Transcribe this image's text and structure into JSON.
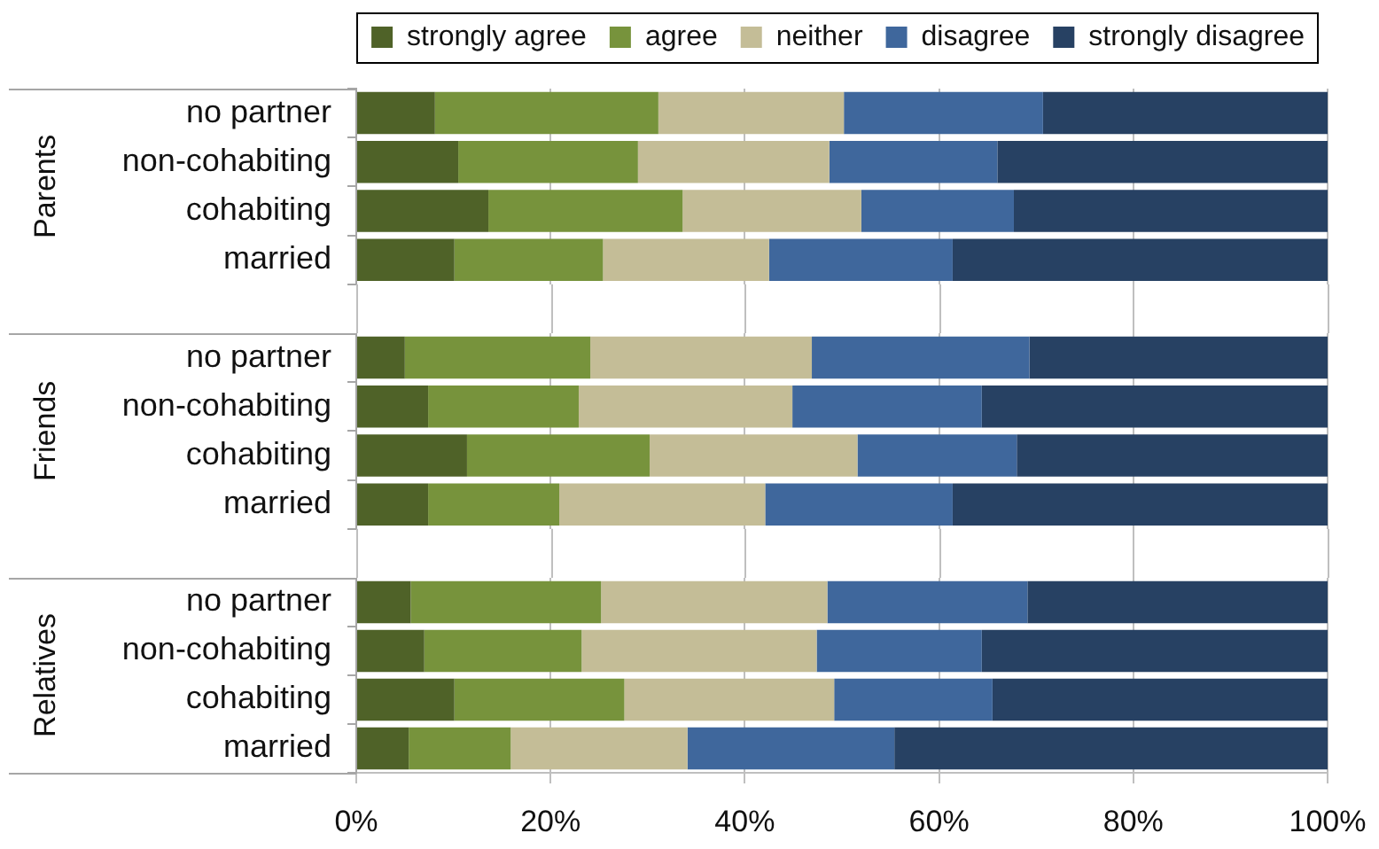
{
  "chart_data": [
    {
      "type": "bar",
      "orientation": "horizontal",
      "stacked": true,
      "ylabel": "Parents",
      "categories": [
        "no partner",
        "non-cohabiting",
        "cohabiting",
        "married"
      ],
      "series": [
        {
          "name": "strongly agree",
          "color": "#4f6228",
          "values": [
            8.1,
            10.5,
            13.6,
            10.1
          ]
        },
        {
          "name": "agree",
          "color": "#77933c",
          "values": [
            23.0,
            18.5,
            20.0,
            15.3
          ]
        },
        {
          "name": "neither",
          "color": "#c4bd97",
          "values": [
            19.1,
            19.7,
            18.4,
            17.1
          ]
        },
        {
          "name": "disagree",
          "color": "#3f679c",
          "values": [
            20.5,
            17.3,
            15.7,
            18.9
          ]
        },
        {
          "name": "strongly disagree",
          "color": "#274163",
          "values": [
            29.3,
            34.0,
            32.3,
            38.6
          ]
        }
      ],
      "xlim": [
        0,
        100
      ],
      "xticks": [
        {
          "value": 0,
          "label": null
        },
        {
          "value": 20,
          "label": null
        },
        {
          "value": 40,
          "label": null
        },
        {
          "value": 60,
          "label": null
        },
        {
          "value": 80,
          "label": null
        },
        {
          "value": 100,
          "label": null
        }
      ],
      "grid": "x",
      "legend": "top right",
      "tick_labels": "y"
    },
    {
      "type": "bar",
      "orientation": "horizontal",
      "stacked": true,
      "ylabel": "Friends",
      "categories": [
        "no partner",
        "non-cohabiting",
        "cohabiting",
        "married"
      ],
      "series": [
        {
          "color": "#4f6228",
          "values": [
            5.0,
            7.4,
            11.4,
            7.4
          ]
        },
        {
          "color": "#77933c",
          "values": [
            19.1,
            15.5,
            18.8,
            13.5
          ]
        },
        {
          "color": "#c4bd97",
          "values": [
            22.8,
            22.0,
            21.4,
            21.2
          ]
        },
        {
          "color": "#3f679c",
          "values": [
            22.4,
            19.5,
            16.4,
            19.3
          ]
        },
        {
          "color": "#274163",
          "values": [
            30.7,
            35.6,
            32.0,
            38.6
          ]
        }
      ],
      "xlim": [
        0,
        100
      ],
      "xticks": [
        {
          "value": 0,
          "label": null
        },
        {
          "value": 20,
          "label": null
        },
        {
          "value": 40,
          "label": null
        },
        {
          "value": 60,
          "label": null
        },
        {
          "value": 80,
          "label": null
        },
        {
          "value": 100,
          "label": null
        }
      ],
      "grid": "x",
      "tick_labels": "y"
    },
    {
      "type": "bar",
      "orientation": "horizontal",
      "stacked": true,
      "ylabel": "Relatives",
      "categories": [
        "no partner",
        "non-cohabiting",
        "cohabiting",
        "married"
      ],
      "series": [
        {
          "color": "#4f6228",
          "values": [
            5.6,
            7.0,
            10.1,
            5.4
          ]
        },
        {
          "color": "#77933c",
          "values": [
            19.6,
            16.2,
            17.5,
            10.5
          ]
        },
        {
          "color": "#c4bd97",
          "values": [
            23.3,
            24.2,
            21.6,
            18.2
          ]
        },
        {
          "color": "#3f679c",
          "values": [
            20.6,
            17.0,
            16.3,
            21.3
          ]
        },
        {
          "color": "#274163",
          "values": [
            30.9,
            35.6,
            34.5,
            44.6
          ]
        }
      ],
      "xlim": [
        0,
        100
      ],
      "xticks": [
        {
          "value": 0,
          "label": "0%"
        },
        {
          "value": 20,
          "label": "20%"
        },
        {
          "value": 40,
          "label": "40%"
        },
        {
          "value": 60,
          "label": "60%"
        },
        {
          "value": 80,
          "label": "80%"
        },
        {
          "value": 100,
          "label": "100%"
        }
      ],
      "grid": "x"
    }
  ]
}
